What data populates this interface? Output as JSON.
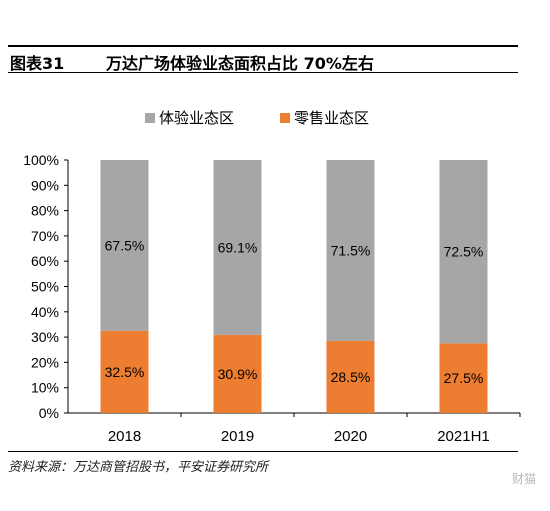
{
  "figure": {
    "label": "图表31",
    "title": "万达广场体验业态面积占比 70%左右",
    "source": "资料来源：万达商管招股书，平安证券研究所",
    "watermark": "财猫"
  },
  "chart_data": {
    "type": "bar",
    "stacked": true,
    "categories": [
      "2018",
      "2019",
      "2020",
      "2021H1"
    ],
    "series": [
      {
        "name": "零售业态区",
        "values": [
          32.5,
          30.9,
          28.5,
          27.5
        ],
        "labels": [
          "32.5%",
          "30.9%",
          "28.5%",
          "27.5%"
        ],
        "color": "#ED7D31"
      },
      {
        "name": "体验业态区",
        "values": [
          67.5,
          69.1,
          71.5,
          72.5
        ],
        "labels": [
          "67.5%",
          "69.1%",
          "71.5%",
          "72.5%"
        ],
        "color": "#A6A6A6"
      }
    ],
    "legend_order": [
      "体验业态区",
      "零售业态区"
    ],
    "legend_position": "top",
    "ylim": [
      0,
      100
    ],
    "yticks": [
      "0%",
      "10%",
      "20%",
      "30%",
      "40%",
      "50%",
      "60%",
      "70%",
      "80%",
      "90%",
      "100%"
    ],
    "grid": false
  }
}
